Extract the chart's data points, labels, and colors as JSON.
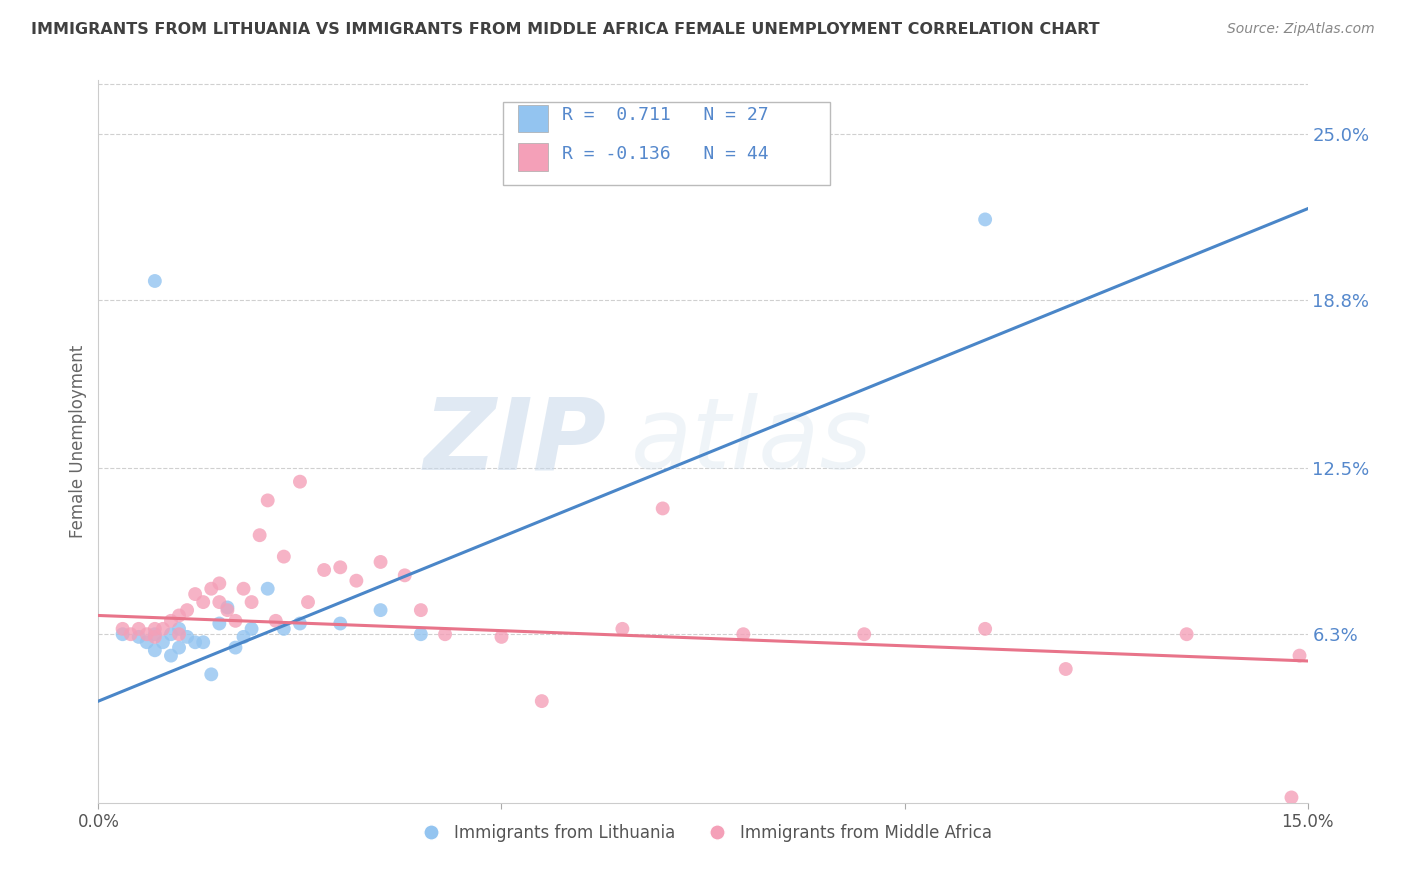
{
  "title": "IMMIGRANTS FROM LITHUANIA VS IMMIGRANTS FROM MIDDLE AFRICA FEMALE UNEMPLOYMENT CORRELATION CHART",
  "source": "Source: ZipAtlas.com",
  "ylabel": "Female Unemployment",
  "ytick_labels": [
    "25.0%",
    "18.8%",
    "12.5%",
    "6.3%"
  ],
  "ytick_values": [
    0.25,
    0.188,
    0.125,
    0.063
  ],
  "xlim": [
    0.0,
    0.15
  ],
  "ylim": [
    0.0,
    0.27
  ],
  "background_color": "#ffffff",
  "watermark_zip": "ZIP",
  "watermark_atlas": "atlas",
  "series1_color": "#93c4f0",
  "series2_color": "#f4a0b8",
  "trendline1_color": "#4a86c8",
  "trendline2_color": "#e8748a",
  "grid_color": "#d0d0d0",
  "right_axis_color": "#5588cc",
  "title_color": "#404040",
  "source_color": "#888888",
  "series1_label": "Immigrants from Lithuania",
  "series2_label": "Immigrants from Middle Africa",
  "legend_line1": "R =  0.711   N = 27",
  "legend_line2": "R = -0.136   N = 44",
  "blue_trendline_x": [
    0.0,
    0.15
  ],
  "blue_trendline_y": [
    0.038,
    0.222
  ],
  "pink_trendline_x": [
    0.0,
    0.15
  ],
  "pink_trendline_y": [
    0.07,
    0.053
  ],
  "blue_points_x": [
    0.003,
    0.005,
    0.006,
    0.007,
    0.007,
    0.008,
    0.009,
    0.009,
    0.01,
    0.01,
    0.011,
    0.012,
    0.013,
    0.014,
    0.015,
    0.016,
    0.017,
    0.018,
    0.019,
    0.021,
    0.023,
    0.025,
    0.03,
    0.035,
    0.04,
    0.11,
    0.007
  ],
  "blue_points_y": [
    0.063,
    0.062,
    0.06,
    0.057,
    0.063,
    0.06,
    0.055,
    0.063,
    0.058,
    0.065,
    0.062,
    0.06,
    0.06,
    0.048,
    0.067,
    0.073,
    0.058,
    0.062,
    0.065,
    0.08,
    0.065,
    0.067,
    0.067,
    0.072,
    0.063,
    0.218,
    0.195
  ],
  "pink_points_x": [
    0.003,
    0.004,
    0.005,
    0.006,
    0.007,
    0.007,
    0.008,
    0.009,
    0.01,
    0.01,
    0.011,
    0.012,
    0.013,
    0.014,
    0.015,
    0.015,
    0.016,
    0.017,
    0.018,
    0.019,
    0.02,
    0.021,
    0.022,
    0.023,
    0.025,
    0.026,
    0.028,
    0.03,
    0.032,
    0.035,
    0.038,
    0.04,
    0.043,
    0.05,
    0.055,
    0.065,
    0.07,
    0.08,
    0.095,
    0.11,
    0.12,
    0.135,
    0.148,
    0.149
  ],
  "pink_points_y": [
    0.065,
    0.063,
    0.065,
    0.063,
    0.062,
    0.065,
    0.065,
    0.068,
    0.063,
    0.07,
    0.072,
    0.078,
    0.075,
    0.08,
    0.075,
    0.082,
    0.072,
    0.068,
    0.08,
    0.075,
    0.1,
    0.113,
    0.068,
    0.092,
    0.12,
    0.075,
    0.087,
    0.088,
    0.083,
    0.09,
    0.085,
    0.072,
    0.063,
    0.062,
    0.038,
    0.065,
    0.11,
    0.063,
    0.063,
    0.065,
    0.05,
    0.063,
    0.002,
    0.055
  ]
}
